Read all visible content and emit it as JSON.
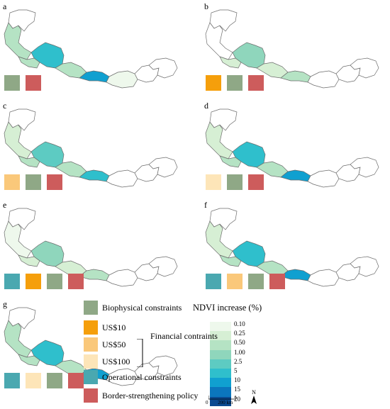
{
  "colors": {
    "biophysical": "#8fa886",
    "border": "#cd5c5c",
    "operational": "#4aa8b0",
    "usd10": "#f59f0b",
    "usd50": "#fac87a",
    "usd100": "#fde5b8",
    "outline": "#6b6b6b"
  },
  "ndvi_legend": {
    "title": "NDVI increase (%)",
    "classes": [
      {
        "label": "0.10",
        "color": "#eef8ec"
      },
      {
        "label": "0.25",
        "color": "#d6efd4"
      },
      {
        "label": "0.50",
        "color": "#b5e3c4"
      },
      {
        "label": "1.00",
        "color": "#8fd6bc"
      },
      {
        "label": "2.5",
        "color": "#5dcbc2"
      },
      {
        "label": "5",
        "color": "#2fbfcc"
      },
      {
        "label": "10",
        "color": "#10a0d0"
      },
      {
        "label": "15",
        "color": "#0b76bd"
      },
      {
        "label": "20",
        "color": "#0a4a91"
      }
    ]
  },
  "category_legend": {
    "biophysical": "Biophysical constraints",
    "usd10": "US$10",
    "usd50": "US$50",
    "usd100": "US$100",
    "financial": "Financial contraints",
    "operational": "Operational constraints",
    "border": "Border-strengthening policy"
  },
  "north_label": "N",
  "scale_bar": {
    "zero": "0",
    "distance": "200 km"
  },
  "panels": [
    {
      "letter": "a",
      "scenario": [
        "biophysical",
        "border"
      ],
      "shading": {
        "west": "#b5e3c4",
        "core": "#2fbfcc",
        "center": "#b5e3c4",
        "east": "#10a0d0",
        "far": "#eef8ec",
        "mid": "#b5e3c4"
      }
    },
    {
      "letter": "b",
      "scenario": [
        "usd10",
        "biophysical",
        "border"
      ],
      "shading": {
        "west": "#ffffff",
        "core": "#8fd6bc",
        "center": "#d6efd4",
        "east": "#b5e3c4",
        "far": "#ffffff",
        "mid": "#d6efd4"
      }
    },
    {
      "letter": "c",
      "scenario": [
        "usd50",
        "biophysical",
        "border"
      ],
      "shading": {
        "west": "#d6efd4",
        "core": "#5dcbc2",
        "center": "#b5e3c4",
        "east": "#2fbfcc",
        "far": "#ffffff",
        "mid": "#b5e3c4"
      }
    },
    {
      "letter": "d",
      "scenario": [
        "usd100",
        "biophysical",
        "border"
      ],
      "shading": {
        "west": "#d6efd4",
        "core": "#2fbfcc",
        "center": "#b5e3c4",
        "east": "#10a0d0",
        "far": "#ffffff",
        "mid": "#b5e3c4"
      }
    },
    {
      "letter": "e",
      "scenario": [
        "operational",
        "usd10",
        "biophysical",
        "border"
      ],
      "shading": {
        "west": "#eef8ec",
        "core": "#8fd6bc",
        "center": "#d6efd4",
        "east": "#b5e3c4",
        "far": "#ffffff",
        "mid": "#d6efd4"
      }
    },
    {
      "letter": "f",
      "scenario": [
        "operational",
        "usd50",
        "biophysical",
        "border"
      ],
      "shading": {
        "west": "#d6efd4",
        "core": "#2fbfcc",
        "center": "#b5e3c4",
        "east": "#10a0d0",
        "far": "#ffffff",
        "mid": "#b5e3c4"
      }
    },
    {
      "letter": "g",
      "scenario": [
        "operational",
        "usd100",
        "biophysical",
        "border"
      ],
      "shading": {
        "west": "#b5e3c4",
        "core": "#2fbfcc",
        "center": "#b5e3c4",
        "east": "#10a0d0",
        "far": "#ffffff",
        "mid": "#b5e3c4"
      }
    }
  ]
}
